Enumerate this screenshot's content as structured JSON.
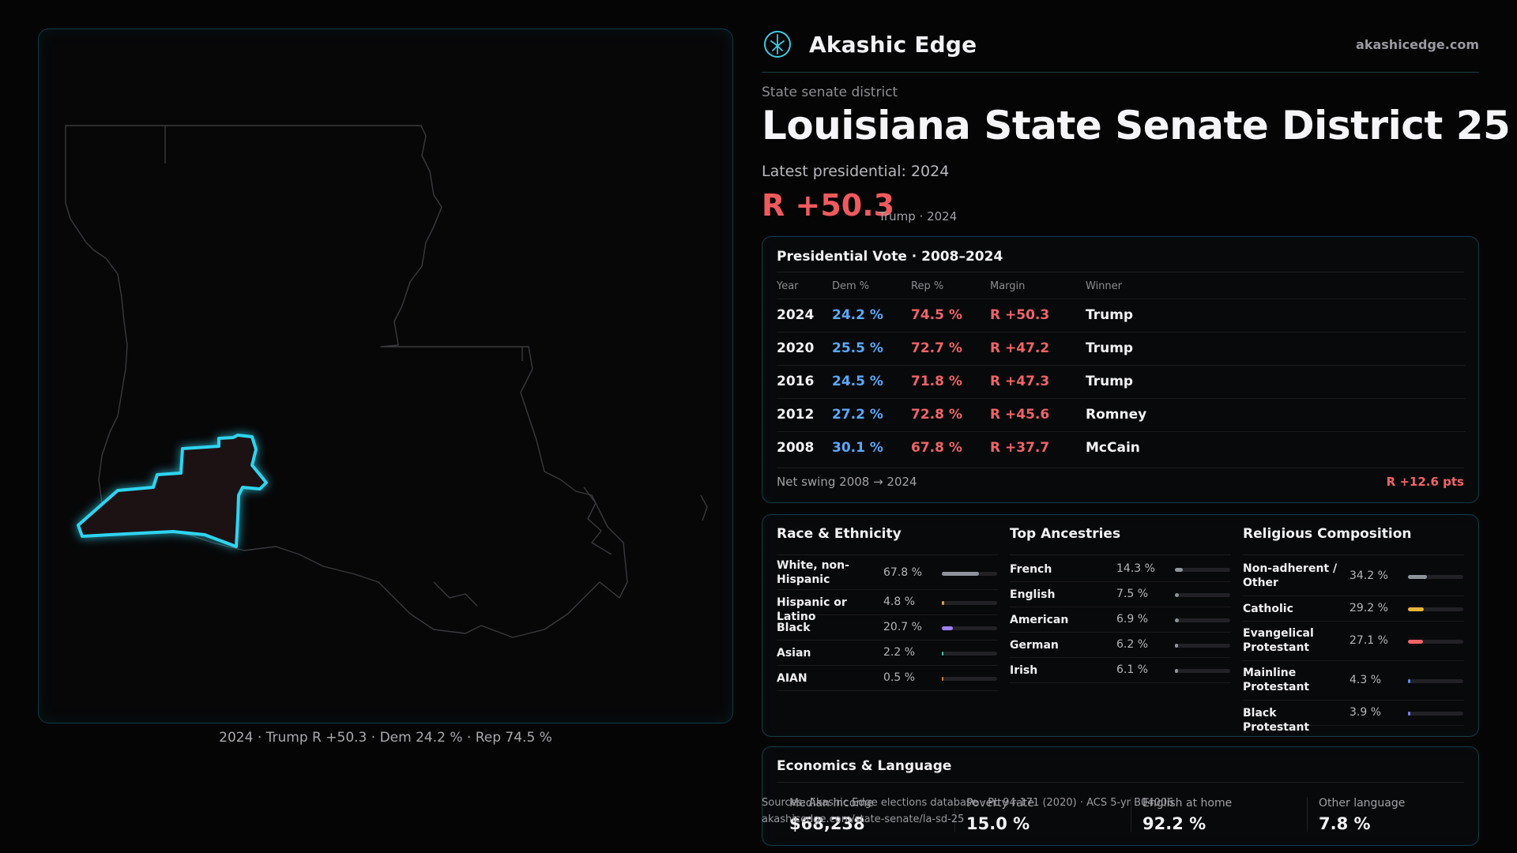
{
  "map": {
    "caption": "2024 · Trump R +50.3 · Dem 24.2 % · Rep 74.5 %",
    "district_color": "#2fd4f0"
  },
  "header": {
    "brand": "Akashic Edge",
    "site": "akashicedge.com",
    "logo_icon": "tree-compass-icon"
  },
  "district": {
    "kind": "State senate district",
    "title": "Louisiana State Senate District 25",
    "latest_label": "Latest presidential: 2024",
    "margin": "R +50.3",
    "margin_sub": "Trump · 2024"
  },
  "presidential": {
    "title": "Presidential Vote · 2008–2024",
    "headers": [
      "Year",
      "Dem %",
      "Rep %",
      "Margin",
      "Winner"
    ],
    "rows": [
      {
        "year": "2024",
        "dem": "24.2 %",
        "rep": "74.5 %",
        "margin": "R +50.3",
        "winner": "Trump"
      },
      {
        "year": "2020",
        "dem": "25.5 %",
        "rep": "72.7 %",
        "margin": "R +47.2",
        "winner": "Trump"
      },
      {
        "year": "2016",
        "dem": "24.5 %",
        "rep": "71.8 %",
        "margin": "R +47.3",
        "winner": "Trump"
      },
      {
        "year": "2012",
        "dem": "27.2 %",
        "rep": "72.8 %",
        "margin": "R +45.6",
        "winner": "Romney"
      },
      {
        "year": "2008",
        "dem": "30.1 %",
        "rep": "67.8 %",
        "margin": "R +37.7",
        "winner": "McCain"
      }
    ],
    "swing_label": "Net swing 2008 → 2024",
    "swing_value": "R +12.6 pts"
  },
  "race": {
    "title": "Race & Ethnicity",
    "items": [
      {
        "label": "White, non-Hispanic",
        "pct": "67.8 %",
        "value": 0.678,
        "color": "#8e939c"
      },
      {
        "label": "Hispanic or Latino",
        "pct": "4.8 %",
        "value": 0.048,
        "color": "#e0a03a"
      },
      {
        "label": "Black",
        "pct": "20.7 %",
        "value": 0.207,
        "color": "#a07ff0"
      },
      {
        "label": "Asian",
        "pct": "2.2 %",
        "value": 0.022,
        "color": "#3fc7a8"
      },
      {
        "label": "AIAN",
        "pct": "0.5 %",
        "value": 0.005,
        "color": "#d07a3a"
      }
    ]
  },
  "ancestry": {
    "title": "Top Ancestries",
    "items": [
      {
        "label": "French",
        "pct": "14.3 %",
        "value": 0.143,
        "color": "#8e939c"
      },
      {
        "label": "English",
        "pct": "7.5 %",
        "value": 0.075,
        "color": "#8e939c"
      },
      {
        "label": "American",
        "pct": "6.9 %",
        "value": 0.069,
        "color": "#8e939c"
      },
      {
        "label": "German",
        "pct": "6.2 %",
        "value": 0.062,
        "color": "#8e939c"
      },
      {
        "label": "Irish",
        "pct": "6.1 %",
        "value": 0.061,
        "color": "#8e939c"
      }
    ]
  },
  "religion": {
    "title": "Religious Composition",
    "items": [
      {
        "label": "Non-adherent / Other",
        "pct": "34.2 %",
        "value": 0.342,
        "color": "#8e939c"
      },
      {
        "label": "Catholic",
        "pct": "29.2 %",
        "value": 0.292,
        "color": "#e8b53a"
      },
      {
        "label": "Evangelical Protestant",
        "pct": "27.1 %",
        "value": 0.271,
        "color": "#ef6469"
      },
      {
        "label": "Mainline Protestant",
        "pct": "4.3 %",
        "value": 0.043,
        "color": "#5a8cf0"
      },
      {
        "label": "Black Protestant",
        "pct": "3.9 %",
        "value": 0.039,
        "color": "#7a7ff0"
      }
    ]
  },
  "economics": {
    "title": "Economics & Language",
    "stats": [
      {
        "label": "Median income",
        "value": "$68,238"
      },
      {
        "label": "Poverty rate",
        "value": "15.0 %"
      },
      {
        "label": "English at home",
        "value": "92.2 %"
      },
      {
        "label": "Other language",
        "value": "7.8 %"
      }
    ]
  },
  "footer": {
    "sources": "Sources: Akashic Edge elections database · PL 94-171 (2020) · ACS 5-yr B04006",
    "url": "akashicedge.com/state-senate/la-sd-25"
  }
}
